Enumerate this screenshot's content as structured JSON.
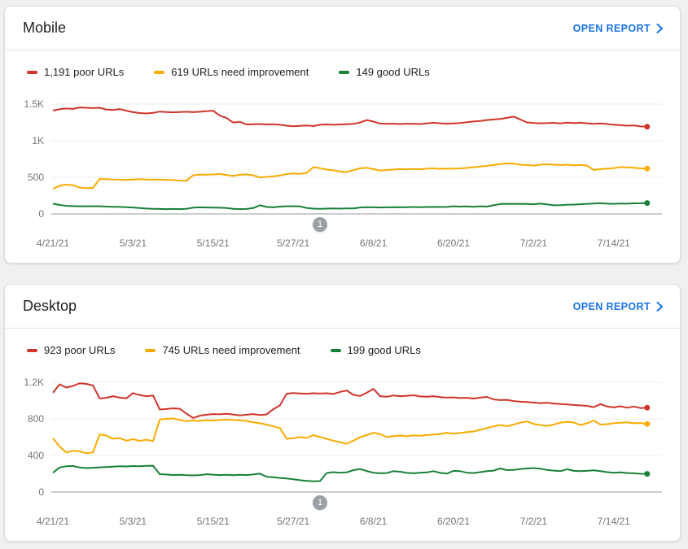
{
  "colors": {
    "poor": "#cf352a",
    "needs_improvement": "#f9ab00",
    "good": "#188038",
    "link": "#1a73e8",
    "grid": "#ececec",
    "axis": "#9b9b9b",
    "badge": "#9aa0a6"
  },
  "cards": [
    {
      "title": "Mobile",
      "open_report_label": "OPEN REPORT",
      "legend": [
        {
          "label": "1,191 poor URLs"
        },
        {
          "label": "619 URLs need improvement"
        },
        {
          "label": "149 good URLs"
        }
      ],
      "chart_data": {
        "type": "line",
        "x_unit": "days since 4/21/21, one point per day",
        "x_ticks": [
          {
            "day": 0,
            "label": "4/21/21"
          },
          {
            "day": 12,
            "label": "5/3/21"
          },
          {
            "day": 24,
            "label": "5/15/21"
          },
          {
            "day": 36,
            "label": "5/27/21"
          },
          {
            "day": 48,
            "label": "6/8/21"
          },
          {
            "day": 60,
            "label": "6/20/21"
          },
          {
            "day": 72,
            "label": "7/2/21"
          },
          {
            "day": 84,
            "label": "7/14/21"
          }
        ],
        "y_ticks": [
          {
            "value": 1500,
            "label": "1.5K"
          },
          {
            "value": 1000,
            "label": "1K"
          },
          {
            "value": 500,
            "label": "500"
          },
          {
            "value": 0,
            "label": "0"
          }
        ],
        "ylim": [
          0,
          1580
        ],
        "grid": true,
        "annotation_marker": {
          "label": "1",
          "day": 40
        },
        "series": [
          {
            "name": "poor URLs",
            "color": "poor",
            "last_value": 1191,
            "values": [
              1412,
              1430,
              1440,
              1434,
              1455,
              1450,
              1446,
              1450,
              1427,
              1420,
              1432,
              1410,
              1390,
              1378,
              1372,
              1380,
              1398,
              1392,
              1388,
              1392,
              1396,
              1390,
              1395,
              1404,
              1410,
              1342,
              1310,
              1248,
              1258,
              1222,
              1225,
              1228,
              1222,
              1226,
              1218,
              1205,
              1198,
              1202,
              1208,
              1200,
              1218,
              1222,
              1218,
              1222,
              1226,
              1230,
              1248,
              1282,
              1262,
              1235,
              1230,
              1232,
              1228,
              1232,
              1230,
              1228,
              1236,
              1246,
              1238,
              1232,
              1236,
              1242,
              1252,
              1262,
              1270,
              1282,
              1290,
              1298,
              1312,
              1330,
              1290,
              1250,
              1242,
              1238,
              1240,
              1244,
              1236,
              1248,
              1240,
              1245,
              1238,
              1230,
              1236,
              1228,
              1218,
              1212,
              1205,
              1208,
              1196,
              1191
            ]
          },
          {
            "name": "URLs need improvement",
            "color": "needs_improvement",
            "last_value": 619,
            "values": [
              340,
              386,
              400,
              392,
              360,
              352,
              356,
              478,
              474,
              470,
              468,
              466,
              470,
              474,
              470,
              468,
              470,
              466,
              462,
              455,
              452,
              528,
              538,
              534,
              540,
              544,
              532,
              520,
              534,
              540,
              528,
              498,
              506,
              514,
              526,
              544,
              552,
              548,
              560,
              638,
              624,
              605,
              597,
              578,
              572,
              598,
              622,
              630,
              612,
              592,
              600,
              606,
              612,
              608,
              614,
              610,
              618,
              622,
              616,
              620,
              618,
              622,
              628,
              638,
              648,
              655,
              668,
              680,
              690,
              686,
              672,
              668,
              660,
              672,
              678,
              672,
              668,
              672,
              664,
              668,
              660,
              600,
              612,
              618,
              624,
              640,
              636,
              630,
              622,
              619
            ]
          },
          {
            "name": "good URLs",
            "color": "good",
            "last_value": 149,
            "values": [
              140,
              122,
              110,
              107,
              105,
              104,
              106,
              104,
              100,
              98,
              96,
              92,
              88,
              80,
              73,
              70,
              68,
              66,
              68,
              66,
              70,
              86,
              90,
              88,
              86,
              84,
              80,
              70,
              66,
              68,
              80,
              118,
              96,
              90,
              100,
              104,
              106,
              102,
              82,
              72,
              70,
              72,
              74,
              72,
              74,
              76,
              88,
              92,
              90,
              88,
              90,
              92,
              90,
              92,
              94,
              92,
              94,
              96,
              94,
              96,
              104,
              100,
              102,
              98,
              104,
              100,
              118,
              135,
              138,
              136,
              138,
              135,
              132,
              140,
              130,
              118,
              120,
              124,
              128,
              132,
              138,
              142,
              145,
              140,
              138,
              142,
              140,
              144,
              146,
              149
            ]
          }
        ]
      }
    },
    {
      "title": "Desktop",
      "open_report_label": "OPEN REPORT",
      "legend": [
        {
          "label": "923 poor URLs"
        },
        {
          "label": "745 URLs need improvement"
        },
        {
          "label": "199 good URLs"
        }
      ],
      "chart_data": {
        "type": "line",
        "x_unit": "days since 4/21/21, one point per day",
        "x_ticks": [
          {
            "day": 0,
            "label": "4/21/21"
          },
          {
            "day": 12,
            "label": "5/3/21"
          },
          {
            "day": 24,
            "label": "5/15/21"
          },
          {
            "day": 36,
            "label": "5/27/21"
          },
          {
            "day": 48,
            "label": "6/8/21"
          },
          {
            "day": 60,
            "label": "6/20/21"
          },
          {
            "day": 72,
            "label": "7/2/21"
          },
          {
            "day": 84,
            "label": "7/14/21"
          }
        ],
        "y_ticks": [
          {
            "value": 1200,
            "label": "1.2K"
          },
          {
            "value": 800,
            "label": "800"
          },
          {
            "value": 400,
            "label": "400"
          },
          {
            "value": 0,
            "label": "0"
          }
        ],
        "ylim": [
          0,
          1270
        ],
        "grid": true,
        "annotation_marker": {
          "label": "1",
          "day": 40
        },
        "series": [
          {
            "name": "poor URLs",
            "color": "poor",
            "last_value": 923,
            "values": [
              1085,
              1178,
              1142,
              1160,
              1188,
              1182,
              1165,
              1023,
              1030,
              1048,
              1032,
              1024,
              1082,
              1060,
              1048,
              1056,
              902,
              908,
              916,
              910,
              858,
              810,
              835,
              845,
              852,
              850,
              855,
              848,
              838,
              845,
              852,
              842,
              848,
              905,
              948,
              1075,
              1082,
              1078,
              1075,
              1080,
              1076,
              1080,
              1072,
              1095,
              1110,
              1062,
              1050,
              1085,
              1128,
              1048,
              1042,
              1056,
              1048,
              1052,
              1058,
              1045,
              1042,
              1048,
              1038,
              1032,
              1035,
              1028,
              1030,
              1022,
              1032,
              1040,
              1012,
              1005,
              1008,
              995,
              988,
              985,
              978,
              972,
              975,
              968,
              962,
              958,
              952,
              948,
              942,
              928,
              962,
              935,
              925,
              938,
              922,
              935,
              918,
              923
            ]
          },
          {
            "name": "URLs need improvement",
            "color": "needs_improvement",
            "last_value": 745,
            "values": [
              588,
              498,
              432,
              452,
              445,
              425,
              435,
              630,
              618,
              582,
              590,
              562,
              578,
              560,
              572,
              558,
              792,
              800,
              805,
              788,
              775,
              782,
              778,
              785,
              782,
              788,
              792,
              788,
              785,
              778,
              762,
              752,
              738,
              718,
              700,
              582,
              588,
              602,
              592,
              622,
              602,
              582,
              562,
              545,
              528,
              562,
              598,
              622,
              648,
              635,
              602,
              612,
              618,
              612,
              620,
              615,
              622,
              628,
              635,
              648,
              638,
              645,
              655,
              662,
              680,
              700,
              718,
              732,
              720,
              738,
              758,
              772,
              745,
              732,
              722,
              738,
              758,
              768,
              760,
              732,
              752,
              782,
              738,
              742,
              752,
              758,
              762,
              752,
              756,
              745
            ]
          },
          {
            "name": "good URLs",
            "color": "good",
            "last_value": 199,
            "values": [
              212,
              268,
              282,
              285,
              268,
              262,
              266,
              270,
              274,
              278,
              282,
              280,
              284,
              282,
              286,
              288,
              196,
              192,
              186,
              188,
              184,
              182,
              186,
              195,
              190,
              186,
              188,
              185,
              188,
              186,
              192,
              202,
              168,
              162,
              155,
              148,
              140,
              130,
              122,
              118,
              120,
              208,
              218,
              212,
              215,
              240,
              252,
              230,
              212,
              205,
              208,
              228,
              222,
              210,
              205,
              212,
              215,
              228,
              210,
              202,
              232,
              228,
              212,
              208,
              218,
              228,
              235,
              258,
              240,
              242,
              252,
              258,
              262,
              255,
              242,
              235,
              228,
              250,
              232,
              228,
              232,
              238,
              228,
              218,
              212,
              215,
              208,
              205,
              200,
              199
            ]
          }
        ]
      }
    }
  ]
}
